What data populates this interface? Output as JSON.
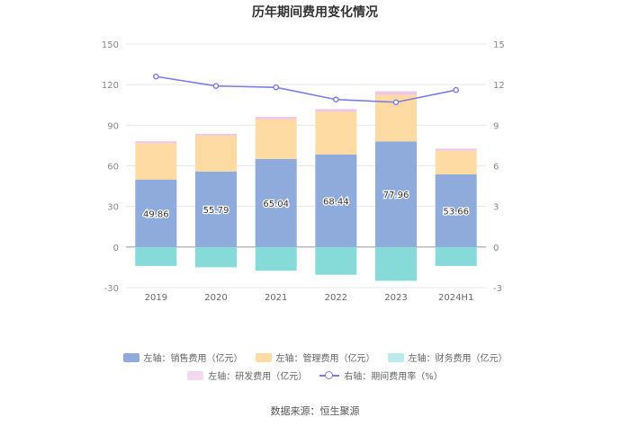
{
  "chart_data": {
    "type": "bar",
    "title": "历年期间费用变化情况",
    "categories": [
      "2019",
      "2020",
      "2021",
      "2022",
      "2023",
      "2024H1"
    ],
    "series": [
      {
        "name": "左轴：销售费用（亿元）",
        "axis": "left",
        "color": "#8eabdc",
        "values": [
          49.86,
          55.79,
          65.04,
          68.44,
          77.96,
          53.66
        ]
      },
      {
        "name": "左轴：管理费用（亿元）",
        "axis": "left",
        "color": "#fddba3",
        "values": [
          27.0,
          26.5,
          29.5,
          31.5,
          34.5,
          17.5
        ]
      },
      {
        "name": "左轴：财务费用（亿元）",
        "axis": "left",
        "color": "#86dbd9",
        "values": [
          -14.0,
          -15.0,
          -17.5,
          -20.5,
          -25.0,
          -14.0
        ]
      },
      {
        "name": "左轴：研发费用（亿元）",
        "axis": "left",
        "color": "#efc6ea",
        "values": [
          1.3,
          1.3,
          1.6,
          2.0,
          2.6,
          1.5
        ]
      },
      {
        "name": "右轴：期间费用率（%）",
        "axis": "right",
        "type": "line",
        "color": "#7b7be5",
        "values": [
          12.6,
          11.9,
          11.8,
          10.9,
          10.7,
          11.6
        ]
      }
    ],
    "data_labels": [
      "49.86",
      "55.79",
      "65.04",
      "68.44",
      "77.96",
      "53.66"
    ],
    "left_axis": {
      "ticks": [
        "150",
        "120",
        "90",
        "60",
        "30",
        "0",
        "-30"
      ],
      "ylim": [
        -30,
        150
      ]
    },
    "right_axis": {
      "ticks": [
        "15",
        "12",
        "9",
        "6",
        "3",
        "0",
        "-3"
      ],
      "ylim": [
        -3,
        15
      ]
    },
    "legend_position": "bottom"
  },
  "legend": [
    {
      "label": "左轴：销售费用（亿元）",
      "color": "#8eabdc"
    },
    {
      "label": "左轴：管理费用（亿元）",
      "color": "#fddba3"
    },
    {
      "label": "左轴：财务费用（亿元）",
      "color": "#b9ebea"
    },
    {
      "label": "左轴：研发费用（亿元）",
      "color": "#f4d8f0"
    },
    {
      "label": "右轴：期间费用率（%）",
      "color": "#7b7be5"
    }
  ],
  "source": "数据来源：恒生聚源"
}
